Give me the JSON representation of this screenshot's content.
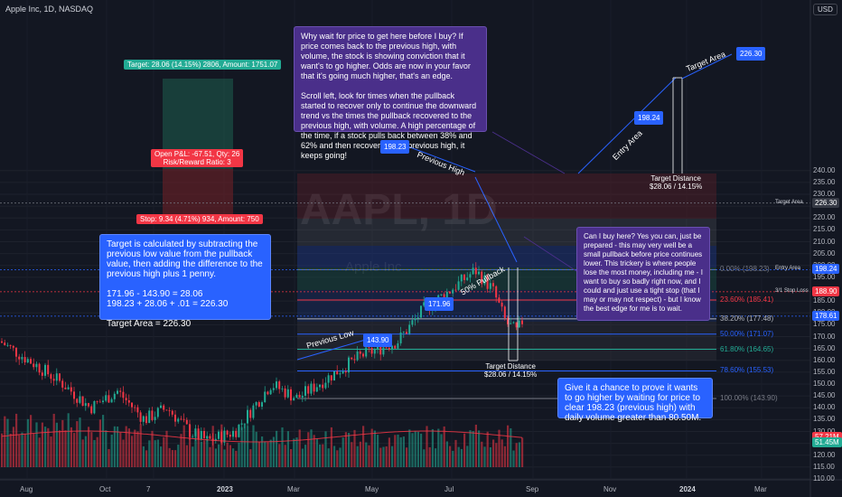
{
  "header": {
    "symbol": "Apple Inc, 1D, NASDAQ",
    "currency": "USD"
  },
  "watermark": {
    "ticker": "AAPL, 1D",
    "name": "Apple Inc"
  },
  "y_axis": [
    {
      "v": 240,
      "t": "240.00"
    },
    {
      "v": 235,
      "t": "235.00"
    },
    {
      "v": 230,
      "t": "230.00"
    },
    {
      "v": 225,
      "t": "225.00"
    },
    {
      "v": 220,
      "t": "220.00"
    },
    {
      "v": 215,
      "t": "215.00"
    },
    {
      "v": 210,
      "t": "210.00"
    },
    {
      "v": 205,
      "t": "205.00"
    },
    {
      "v": 200,
      "t": "200.00"
    },
    {
      "v": 195,
      "t": "195.00"
    },
    {
      "v": 185,
      "t": "185.00"
    },
    {
      "v": 180,
      "t": "180.00"
    },
    {
      "v": 175,
      "t": "175.00"
    },
    {
      "v": 170,
      "t": "170.00"
    },
    {
      "v": 165,
      "t": "165.00"
    },
    {
      "v": 160,
      "t": "160.00"
    },
    {
      "v": 155,
      "t": "155.00"
    },
    {
      "v": 150,
      "t": "150.00"
    },
    {
      "v": 145,
      "t": "145.00"
    },
    {
      "v": 140,
      "t": "140.00"
    },
    {
      "v": 135,
      "t": "135.00"
    },
    {
      "v": 130,
      "t": "130.00"
    },
    {
      "v": 125,
      "t": "125.00"
    },
    {
      "v": 120,
      "t": "120.00"
    },
    {
      "v": 115,
      "t": "115.00"
    },
    {
      "v": 110,
      "t": "110.00"
    }
  ],
  "x_axis": [
    "Aug",
    "Oct",
    "7",
    "2023",
    "Mar",
    "May",
    "Jul",
    "Sep",
    "Nov",
    "2024",
    "Mar"
  ],
  "price_tags": [
    {
      "label": "Target Area",
      "value": "226.30",
      "price": 226.3,
      "color": "#2b2b2b"
    },
    {
      "label": "Entry Area",
      "value": "198.24",
      "price": 198.24,
      "color": "#2962ff"
    },
    {
      "label": "3/1 Stop Loss",
      "value": "188.90",
      "price": 188.9,
      "color": "#f23645"
    },
    {
      "label": "",
      "value": "178.61",
      "price": 178.61,
      "color": "#2962ff"
    },
    {
      "label": "",
      "value": "57.21M",
      "price": 127.5,
      "color": "#f23645"
    },
    {
      "label": "",
      "value": "51.45M",
      "price": 125.2,
      "color": "#22ab94"
    }
  ],
  "fib_levels": [
    {
      "label": "0.00% (198.23)",
      "price": 198.23,
      "color": "#787b86"
    },
    {
      "label": "23.60% (185.41)",
      "price": 185.41,
      "color": "#f23645"
    },
    {
      "label": "38.20% (177.48)",
      "price": 177.48,
      "color": "#b2b5be"
    },
    {
      "label": "50.00% (171.07)",
      "price": 171.07,
      "color": "#2962ff"
    },
    {
      "label": "61.80% (164.65)",
      "price": 164.65,
      "color": "#22ab94"
    },
    {
      "label": "78.60% (155.53)",
      "price": 155.53,
      "color": "#2962ff"
    },
    {
      "label": "100.00% (143.90)",
      "price": 143.9,
      "color": "#787b86"
    }
  ],
  "position": {
    "target": "Target: 28.06 (14.15%) 2806, Amount: 1751.07",
    "pnl": "Open P&L: -67.51, Qty: 26\nRisk/Reward Ratio: 3",
    "stop": "Stop: 9.34 (4.71%) 934, Amount: 750"
  },
  "notes": {
    "top": "Why wait for price to get here before I buy?  If price comes back to the previous high, with volume, the stock is showing conviction that it want's to go higher. Odds are now in your favor that it's going much higher, that's an edge.\n\nScroll left, look for times when the pullback started to recover only to continue the downward trend vs the times the pullback recovered to the previous high, with volume.  A high percentage of the time, if a stock pulls back between 38% and 62% and then recovers to it's previous high, it keeps going!",
    "left": "Target is calculated by subtracting the previous low value from the pullback value, then adding the difference to the previous high plus 1 penny.\n\n171.96 - 143.90 = 28.06\n198.23 + 28.06 + .01 = 226.30\n\nTarget Area = 226.30",
    "right": "Can I buy here?  Yes you can, just be prepared - this may very well be a small pullback before price continues lower.  This trickery is where people lose the most money, including me - I want to buy so badly right now, and I could and just use a tight stop (that I may or may not respect) - but I know the best edge for me is to wait.",
    "bottom": "Give it a chance to prove it wants to go higher by waiting for price to clear 198.23 (previous high) with daily volume greater than 80.50M."
  },
  "labels": {
    "previous_high_value": "198.23",
    "previous_high": "Previous High",
    "previous_low": "Previous Low",
    "previous_low_value": "143.90",
    "pullback": "50% Pullback",
    "pullback_value": "171.96",
    "entry_area": "Entry Area",
    "entry_value": "198.24",
    "target_area": "Target Area",
    "target_value": "226.30",
    "target_distance_top": "Target Distance\n$28.06 / 14.15%",
    "target_distance_bottom": "Target Distance\n$28.06 / 14.15%"
  },
  "colors": {
    "up": "#22ab94",
    "down": "#f23645",
    "accent": "#2962ff",
    "note": "#4a2f8a",
    "bg": "#131722"
  }
}
